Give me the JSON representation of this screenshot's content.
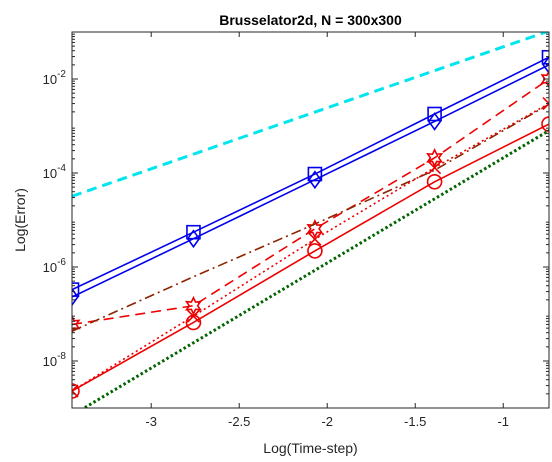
{
  "chart_data": {
    "type": "line",
    "title": "Brusselator2d, N = 300x300",
    "xlabel": "Log(Time-step)",
    "ylabel": "Log(Error)",
    "xlim": [
      -3.45,
      -0.74
    ],
    "ylim": [
      1e-09,
      0.1
    ],
    "y_scale": "log",
    "grid": false,
    "legend": "none",
    "x_ticks": [
      -3,
      -2.5,
      -2,
      -1.5,
      -1
    ],
    "x_tick_labels": [
      "-3",
      "-2.5",
      "-2",
      "-1.5",
      "-1"
    ],
    "y_ticks": [
      1e-08,
      1e-06,
      0.0001,
      0.01
    ],
    "y_tick_labels": [
      {
        "base": "10",
        "exp": "-8"
      },
      {
        "base": "10",
        "exp": "-6"
      },
      {
        "base": "10",
        "exp": "-4"
      },
      {
        "base": "10",
        "exp": "-2"
      }
    ],
    "series": [
      {
        "x": [
          -3.45,
          -0.74
        ],
        "y": [
          3.2e-05,
          0.105
        ],
        "color": "#00e5ee",
        "dash": "dashed",
        "marker": "none"
      },
      {
        "x": [
          -3.45,
          -0.74
        ],
        "y": [
          7e-10,
          0.0008
        ],
        "color": "#006400",
        "dash": "dotted",
        "marker": "none"
      },
      {
        "x": [
          -3.45,
          -2.76,
          -2.07,
          -1.39,
          -0.74
        ],
        "y": [
          3.3e-07,
          5.5e-06,
          9.5e-05,
          0.0018,
          0.029
        ],
        "color": "#0000ee",
        "dash": "solid",
        "marker": "square"
      },
      {
        "x": [
          -3.45,
          -2.76,
          -2.07,
          -1.39,
          -0.74
        ],
        "y": [
          2.3e-07,
          4e-06,
          7.2e-05,
          0.00125,
          0.02
        ],
        "color": "#0000ee",
        "dash": "solid",
        "marker": "diamond"
      },
      {
        "x": [
          -3.45,
          -2.76,
          -2.07,
          -1.39,
          -0.74
        ],
        "y": [
          6e-08,
          1.5e-07,
          6.5e-06,
          0.00021,
          0.01
        ],
        "color": "#ee0000",
        "dash": "dashed",
        "marker": "hexagram"
      },
      {
        "x": [
          -3.45,
          -2.76,
          -2.07,
          -1.39,
          -0.74
        ],
        "y": [
          4.3e-08,
          6.2e-07,
          8.2e-06,
          0.000115,
          0.0029
        ],
        "color": "#8b2500",
        "dash": "dashdot",
        "marker": "none"
      },
      {
        "x": [
          -3.45,
          -2.76,
          -2.07,
          -1.39,
          -0.74
        ],
        "y": [
          2.3e-09,
          9e-08,
          3.9e-06,
          0.00013,
          0.003
        ],
        "color": "#ee0000",
        "dash": "dotted",
        "marker": "x"
      },
      {
        "x": [
          -3.45,
          -2.76,
          -2.07,
          -1.39,
          -0.74
        ],
        "y": [
          2.3e-09,
          6.6e-08,
          2.2e-06,
          6.5e-05,
          0.0011
        ],
        "color": "#ee0000",
        "dash": "solid",
        "marker": "circle"
      }
    ]
  }
}
